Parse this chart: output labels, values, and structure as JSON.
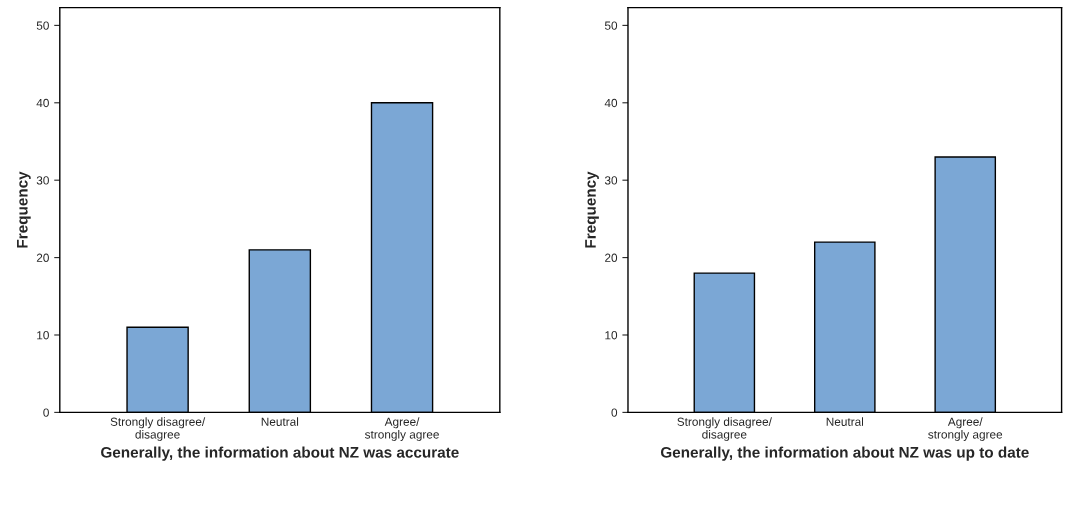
{
  "chart_data": [
    {
      "type": "bar",
      "xlabel": "Generally, the information about NZ was accurate",
      "ylabel": "Frequency",
      "categories": [
        "Strongly disagree/\ndisagree",
        "Neutral",
        "Agree/\nstrongly agree"
      ],
      "values": [
        11,
        21,
        40
      ],
      "color": "#7ba7d5",
      "ylim": [
        0,
        52.3
      ],
      "yticks": [
        0,
        10,
        20,
        30,
        40,
        50
      ],
      "grid": false
    },
    {
      "type": "bar",
      "xlabel": "Generally, the information about NZ was up to date",
      "ylabel": "Frequency",
      "categories": [
        "Strongly disagree/\ndisagree",
        "Neutral",
        "Agree/\nstrongly agree"
      ],
      "values": [
        18,
        22,
        33
      ],
      "color": "#7ba7d5",
      "ylim": [
        0,
        52.3
      ],
      "yticks": [
        0,
        10,
        20,
        30,
        40,
        50
      ],
      "grid": false
    }
  ]
}
